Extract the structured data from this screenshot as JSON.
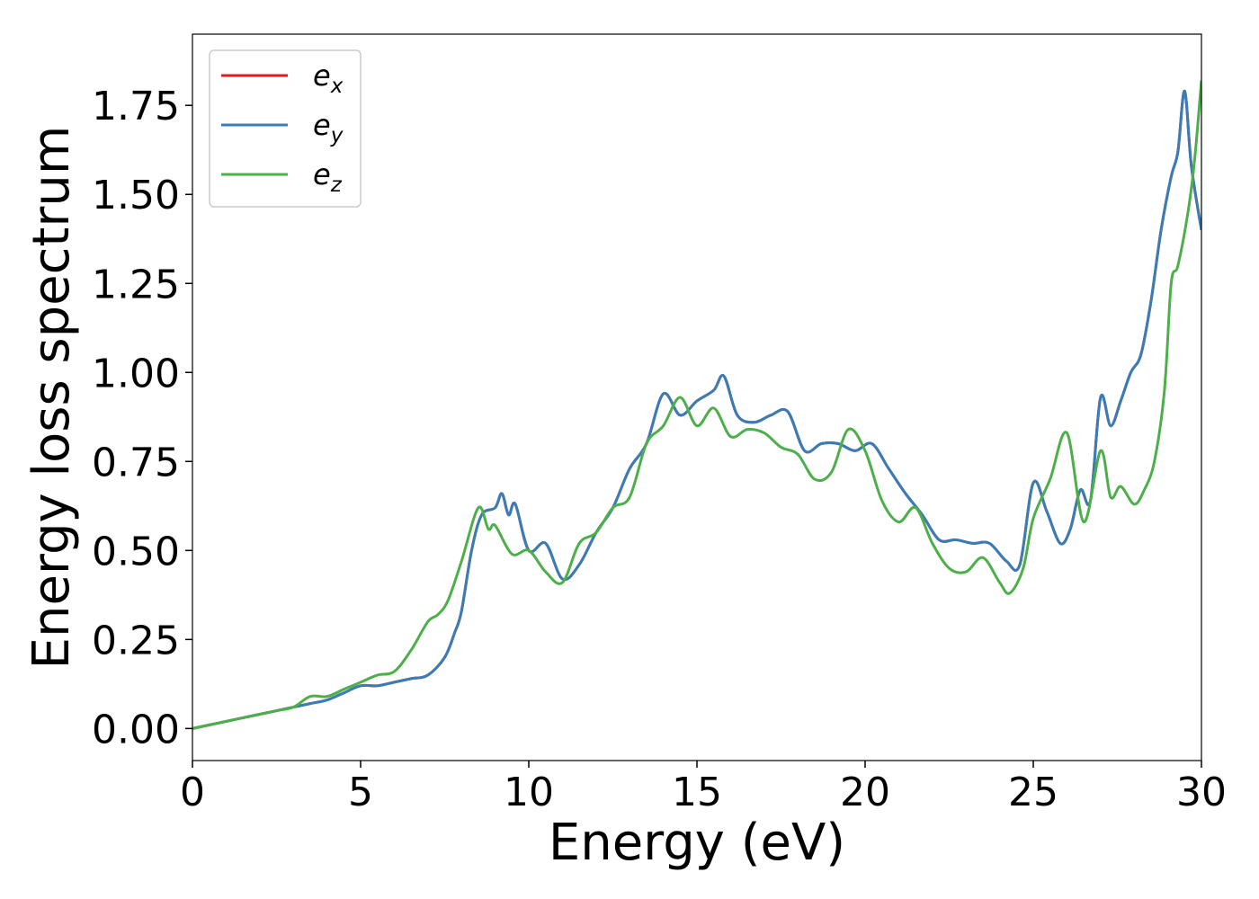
{
  "chart_data": {
    "type": "line",
    "title": "",
    "xlabel": "Energy (eV)",
    "ylabel": "Energy loss spectrum",
    "xlim": [
      0,
      30
    ],
    "ylim": [
      -0.09,
      1.95
    ],
    "xticks": [
      0,
      5,
      10,
      15,
      20,
      25,
      30
    ],
    "xtick_labels": [
      "0",
      "5",
      "10",
      "15",
      "20",
      "25",
      "30"
    ],
    "yticks": [
      0.0,
      0.25,
      0.5,
      0.75,
      1.0,
      1.25,
      1.5,
      1.75
    ],
    "ytick_labels": [
      "0.00",
      "0.25",
      "0.50",
      "0.75",
      "1.00",
      "1.25",
      "1.50",
      "1.75"
    ],
    "grid": false,
    "legend_position": "top-left",
    "series": [
      {
        "name": "e_x",
        "legend_base": "e",
        "legend_sub": "x",
        "color": "#e41a1c",
        "x": [
          0,
          0.5,
          1.0,
          1.5,
          2.0,
          2.5,
          3.0,
          3.5,
          4.0,
          4.5,
          5.0,
          5.5,
          6.0,
          6.5,
          7.0,
          7.5,
          7.8,
          8.0,
          8.3,
          8.6,
          9.0,
          9.2,
          9.4,
          9.6,
          10.0,
          10.5,
          11.0,
          11.5,
          12.0,
          12.5,
          13.0,
          13.5,
          14.0,
          14.5,
          15.0,
          15.5,
          15.8,
          16.2,
          16.7,
          17.2,
          17.7,
          18.2,
          18.7,
          19.2,
          19.7,
          20.2,
          20.7,
          21.2,
          21.7,
          22.2,
          22.7,
          23.2,
          23.7,
          24.2,
          24.6,
          25.0,
          25.4,
          25.8,
          26.1,
          26.4,
          26.7,
          27.0,
          27.3,
          27.6,
          27.9,
          28.2,
          28.5,
          28.8,
          29.1,
          29.3,
          29.5,
          29.7,
          30.0
        ],
        "y": [
          0.0,
          0.01,
          0.02,
          0.03,
          0.04,
          0.05,
          0.06,
          0.07,
          0.08,
          0.1,
          0.12,
          0.12,
          0.13,
          0.14,
          0.15,
          0.2,
          0.27,
          0.33,
          0.5,
          0.6,
          0.62,
          0.66,
          0.6,
          0.63,
          0.5,
          0.52,
          0.42,
          0.46,
          0.55,
          0.62,
          0.73,
          0.8,
          0.94,
          0.88,
          0.92,
          0.95,
          0.99,
          0.88,
          0.86,
          0.88,
          0.89,
          0.78,
          0.8,
          0.8,
          0.78,
          0.8,
          0.73,
          0.66,
          0.6,
          0.53,
          0.53,
          0.52,
          0.52,
          0.47,
          0.46,
          0.69,
          0.61,
          0.52,
          0.56,
          0.67,
          0.64,
          0.93,
          0.85,
          0.92,
          1.0,
          1.05,
          1.2,
          1.4,
          1.55,
          1.62,
          1.79,
          1.58,
          1.4
        ]
      },
      {
        "name": "e_y",
        "legend_base": "e",
        "legend_sub": "y",
        "color": "#377eb8",
        "x": [
          0,
          0.5,
          1.0,
          1.5,
          2.0,
          2.5,
          3.0,
          3.5,
          4.0,
          4.5,
          5.0,
          5.5,
          6.0,
          6.5,
          7.0,
          7.5,
          7.8,
          8.0,
          8.3,
          8.6,
          9.0,
          9.2,
          9.4,
          9.6,
          10.0,
          10.5,
          11.0,
          11.5,
          12.0,
          12.5,
          13.0,
          13.5,
          14.0,
          14.5,
          15.0,
          15.5,
          15.8,
          16.2,
          16.7,
          17.2,
          17.7,
          18.2,
          18.7,
          19.2,
          19.7,
          20.2,
          20.7,
          21.2,
          21.7,
          22.2,
          22.7,
          23.2,
          23.7,
          24.2,
          24.6,
          25.0,
          25.4,
          25.8,
          26.1,
          26.4,
          26.7,
          27.0,
          27.3,
          27.6,
          27.9,
          28.2,
          28.5,
          28.8,
          29.1,
          29.3,
          29.5,
          29.7,
          30.0
        ],
        "y": [
          0.0,
          0.01,
          0.02,
          0.03,
          0.04,
          0.05,
          0.06,
          0.07,
          0.08,
          0.1,
          0.12,
          0.12,
          0.13,
          0.14,
          0.15,
          0.2,
          0.27,
          0.33,
          0.5,
          0.6,
          0.62,
          0.66,
          0.6,
          0.63,
          0.5,
          0.52,
          0.42,
          0.46,
          0.55,
          0.62,
          0.73,
          0.8,
          0.94,
          0.88,
          0.92,
          0.95,
          0.99,
          0.88,
          0.86,
          0.88,
          0.89,
          0.78,
          0.8,
          0.8,
          0.78,
          0.8,
          0.73,
          0.66,
          0.6,
          0.53,
          0.53,
          0.52,
          0.52,
          0.47,
          0.46,
          0.69,
          0.61,
          0.52,
          0.56,
          0.67,
          0.64,
          0.93,
          0.85,
          0.92,
          1.0,
          1.05,
          1.2,
          1.4,
          1.55,
          1.62,
          1.79,
          1.58,
          1.4
        ]
      },
      {
        "name": "e_z",
        "legend_base": "e",
        "legend_sub": "z",
        "color": "#4daf4a",
        "x": [
          0,
          0.5,
          1.0,
          1.5,
          2.0,
          2.5,
          3.0,
          3.5,
          4.0,
          4.5,
          5.0,
          5.5,
          6.0,
          6.5,
          7.0,
          7.3,
          7.6,
          8.0,
          8.5,
          8.8,
          9.0,
          9.5,
          10.0,
          10.5,
          11.0,
          11.5,
          12.0,
          12.5,
          13.0,
          13.5,
          14.0,
          14.5,
          15.0,
          15.5,
          16.0,
          16.5,
          17.0,
          17.5,
          18.0,
          18.5,
          19.0,
          19.5,
          20.0,
          20.5,
          21.0,
          21.5,
          22.0,
          22.5,
          23.0,
          23.5,
          24.0,
          24.3,
          24.7,
          25.0,
          25.5,
          26.0,
          26.5,
          27.0,
          27.3,
          27.6,
          28.0,
          28.3,
          28.6,
          28.9,
          29.1,
          29.3,
          29.6,
          29.8,
          30.0
        ],
        "y": [
          0.0,
          0.01,
          0.02,
          0.03,
          0.04,
          0.05,
          0.06,
          0.09,
          0.09,
          0.11,
          0.13,
          0.15,
          0.16,
          0.22,
          0.3,
          0.32,
          0.36,
          0.47,
          0.62,
          0.56,
          0.57,
          0.49,
          0.5,
          0.44,
          0.41,
          0.52,
          0.55,
          0.62,
          0.65,
          0.8,
          0.85,
          0.93,
          0.85,
          0.9,
          0.82,
          0.84,
          0.83,
          0.79,
          0.77,
          0.7,
          0.72,
          0.84,
          0.78,
          0.64,
          0.58,
          0.62,
          0.52,
          0.45,
          0.44,
          0.48,
          0.41,
          0.38,
          0.45,
          0.59,
          0.7,
          0.83,
          0.58,
          0.78,
          0.65,
          0.68,
          0.63,
          0.67,
          0.75,
          0.95,
          1.25,
          1.3,
          1.45,
          1.6,
          1.82
        ]
      }
    ]
  }
}
